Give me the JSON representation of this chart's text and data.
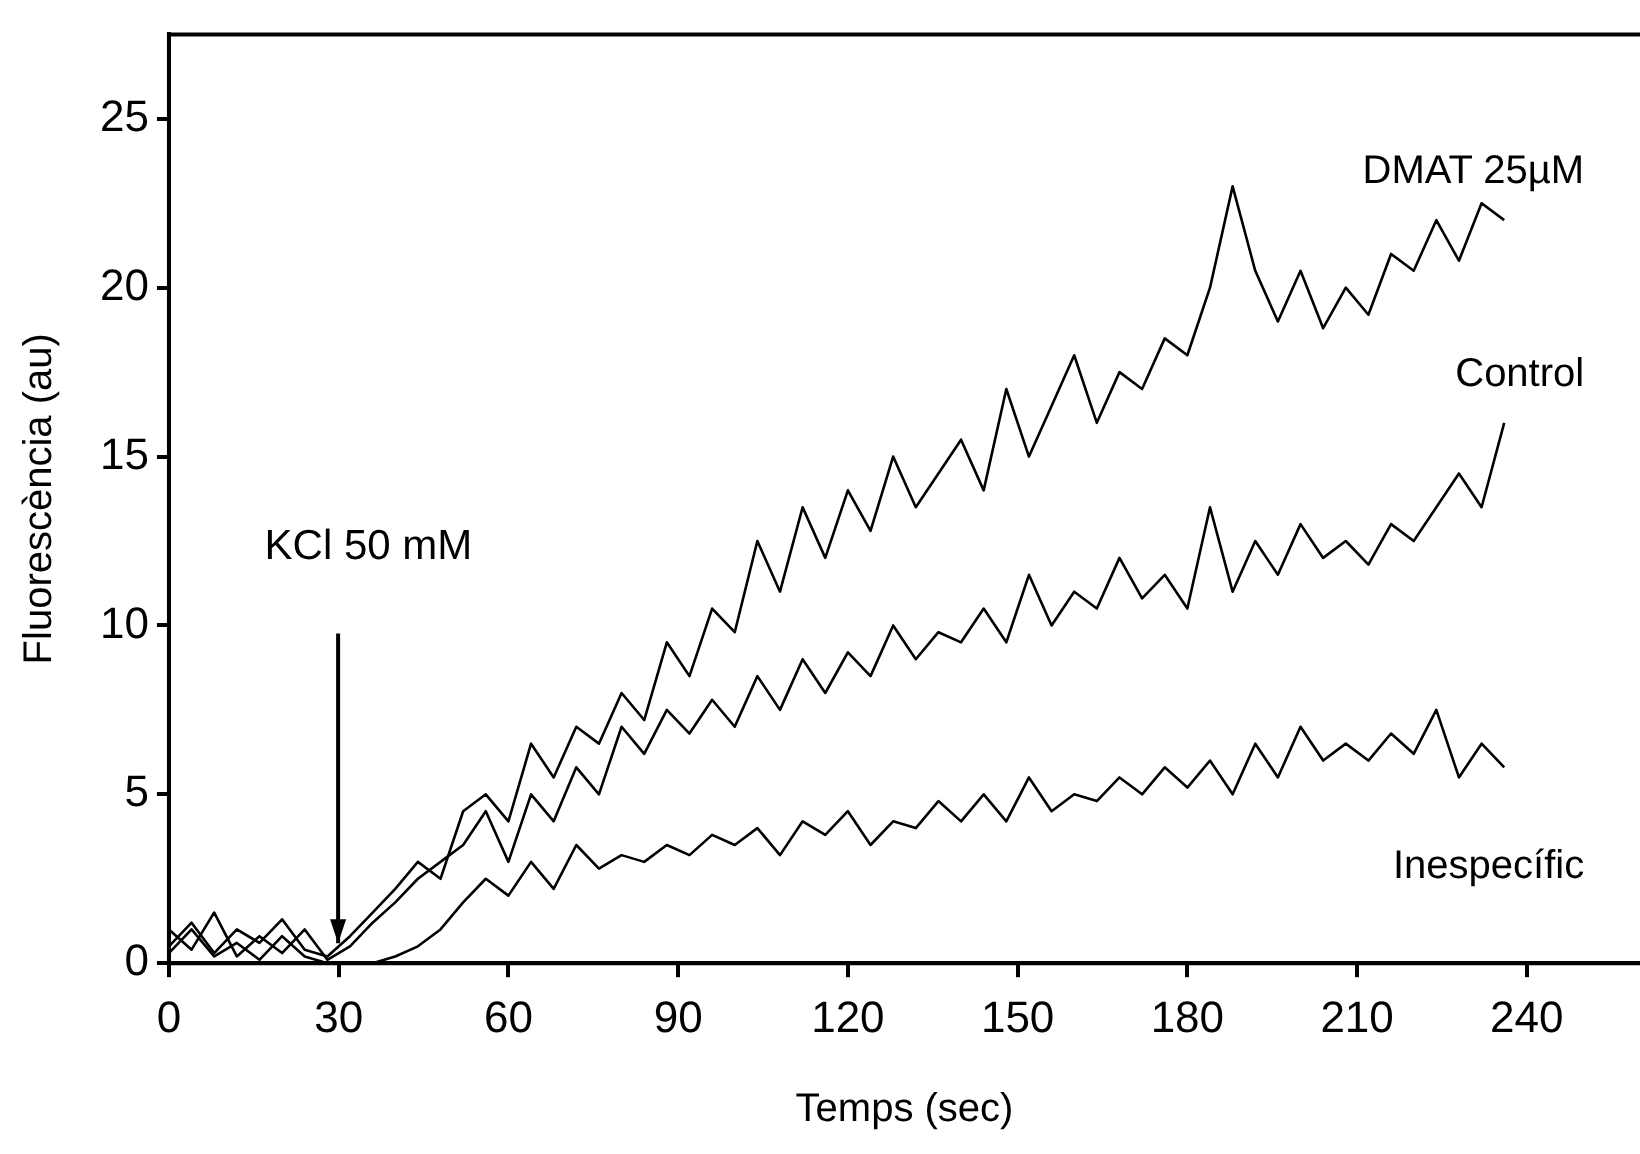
{
  "chart_data": {
    "type": "line",
    "xlabel": "Temps (sec)",
    "ylabel": "Fluorescència (au)",
    "x": [
      0,
      4,
      8,
      12,
      16,
      20,
      24,
      28,
      32,
      36,
      40,
      44,
      48,
      52,
      56,
      60,
      64,
      68,
      72,
      76,
      80,
      84,
      88,
      92,
      96,
      100,
      104,
      108,
      112,
      116,
      120,
      124,
      128,
      132,
      136,
      140,
      144,
      148,
      152,
      156,
      160,
      164,
      168,
      172,
      176,
      180,
      184,
      188,
      192,
      196,
      200,
      204,
      208,
      212,
      216,
      220,
      224,
      228,
      232,
      236
    ],
    "series": [
      {
        "name": "DMAT 25µM",
        "color": "#000000",
        "values": [
          0.5,
          1.2,
          0.3,
          1.0,
          0.6,
          1.3,
          0.4,
          0.2,
          0.8,
          1.5,
          2.2,
          3.0,
          2.5,
          4.5,
          5.0,
          4.2,
          6.5,
          5.5,
          7.0,
          6.5,
          8.0,
          7.2,
          9.5,
          8.5,
          10.5,
          9.8,
          12.5,
          11.0,
          13.5,
          12.0,
          14.0,
          12.8,
          15.0,
          13.5,
          14.5,
          15.5,
          14.0,
          17.0,
          15.0,
          16.5,
          18.0,
          16.0,
          17.5,
          17.0,
          18.5,
          18.0,
          20.0,
          23.0,
          20.5,
          19.0,
          20.5,
          18.8,
          20.0,
          19.2,
          21.0,
          20.5,
          22.0,
          20.8,
          22.5,
          22.0
        ]
      },
      {
        "name": "Control",
        "color": "#000000",
        "values": [
          1.0,
          0.4,
          1.5,
          0.2,
          0.8,
          0.3,
          1.0,
          0.1,
          0.5,
          1.2,
          1.8,
          2.5,
          3.0,
          3.5,
          4.5,
          3.0,
          5.0,
          4.2,
          5.8,
          5.0,
          7.0,
          6.2,
          7.5,
          6.8,
          7.8,
          7.0,
          8.5,
          7.5,
          9.0,
          8.0,
          9.2,
          8.5,
          10.0,
          9.0,
          9.8,
          9.5,
          10.5,
          9.5,
          11.5,
          10.0,
          11.0,
          10.5,
          12.0,
          10.8,
          11.5,
          10.5,
          13.5,
          11.0,
          12.5,
          11.5,
          13.0,
          12.0,
          12.5,
          11.8,
          13.0,
          12.5,
          13.5,
          14.5,
          13.5,
          16.0
        ]
      },
      {
        "name": "Inespecífic",
        "color": "#000000",
        "values": [
          0.3,
          1.0,
          0.2,
          0.6,
          0.1,
          0.8,
          0.2,
          0.0,
          0.0,
          0.0,
          0.2,
          0.5,
          1.0,
          1.8,
          2.5,
          2.0,
          3.0,
          2.2,
          3.5,
          2.8,
          3.2,
          3.0,
          3.5,
          3.2,
          3.8,
          3.5,
          4.0,
          3.2,
          4.2,
          3.8,
          4.5,
          3.5,
          4.2,
          4.0,
          4.8,
          4.2,
          5.0,
          4.2,
          5.5,
          4.5,
          5.0,
          4.8,
          5.5,
          5.0,
          5.8,
          5.2,
          6.0,
          5.0,
          6.5,
          5.5,
          7.0,
          6.0,
          6.5,
          6.0,
          6.8,
          6.2,
          7.5,
          5.5,
          6.5,
          5.8
        ]
      }
    ],
    "annotations": [
      "KCl 50 mM"
    ],
    "xlim": [
      0,
      260
    ],
    "xticks": [
      0,
      30,
      60,
      90,
      120,
      150,
      180,
      210,
      240
    ],
    "ylim": [
      0,
      27.5
    ],
    "yticks": [
      0,
      5,
      10,
      15,
      20,
      25
    ],
    "legend": false,
    "marker": "none",
    "line_style": "solid"
  }
}
